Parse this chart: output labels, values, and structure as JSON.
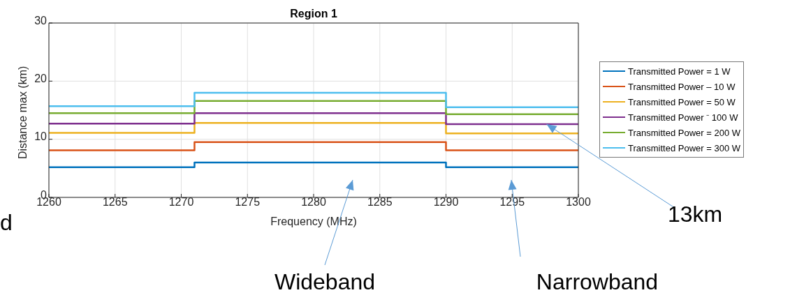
{
  "chart_data": {
    "type": "step",
    "title": "Region 1",
    "xlabel": "Frequency (MHz)",
    "ylabel": "Distance max (km)",
    "x": [
      1260,
      1271,
      1290,
      1300
    ],
    "series": [
      {
        "name": "Transmitted Power = 1 W",
        "color": "#0072bd",
        "values": [
          5.2,
          6.0,
          5.2,
          5.2
        ]
      },
      {
        "name": "Transmitted Power – 10 W",
        "color": "#d95319",
        "values": [
          8.1,
          9.5,
          8.1,
          8.1
        ]
      },
      {
        "name": "Transmitted Power = 50 W",
        "color": "#edb120",
        "values": [
          11.1,
          12.8,
          11.0,
          11.0
        ]
      },
      {
        "name": "Transmitted Power ⁻ 100 W",
        "color": "#7e2f8e",
        "values": [
          12.7,
          14.5,
          12.6,
          12.6
        ]
      },
      {
        "name": "Transmitted Power = 200 W",
        "color": "#77ac30",
        "values": [
          14.5,
          16.6,
          14.3,
          14.3
        ]
      },
      {
        "name": "Transmitted Power = 300 W",
        "color": "#4dbeee",
        "values": [
          15.7,
          18.0,
          15.5,
          15.5
        ]
      }
    ],
    "xlim": [
      1260,
      1300
    ],
    "xticks": [
      1260,
      1265,
      1270,
      1275,
      1280,
      1285,
      1290,
      1295,
      1300
    ],
    "ylim": [
      0,
      30
    ],
    "yticks": [
      0,
      10,
      20,
      30
    ],
    "grid": true,
    "legend": "right",
    "marker": "none",
    "line_style": "solid",
    "annotations": [
      "Wideband",
      "Narrowband",
      {
        "text": "13km",
        "x": 1297.6,
        "y": 12.6
      },
      "d"
    ]
  }
}
